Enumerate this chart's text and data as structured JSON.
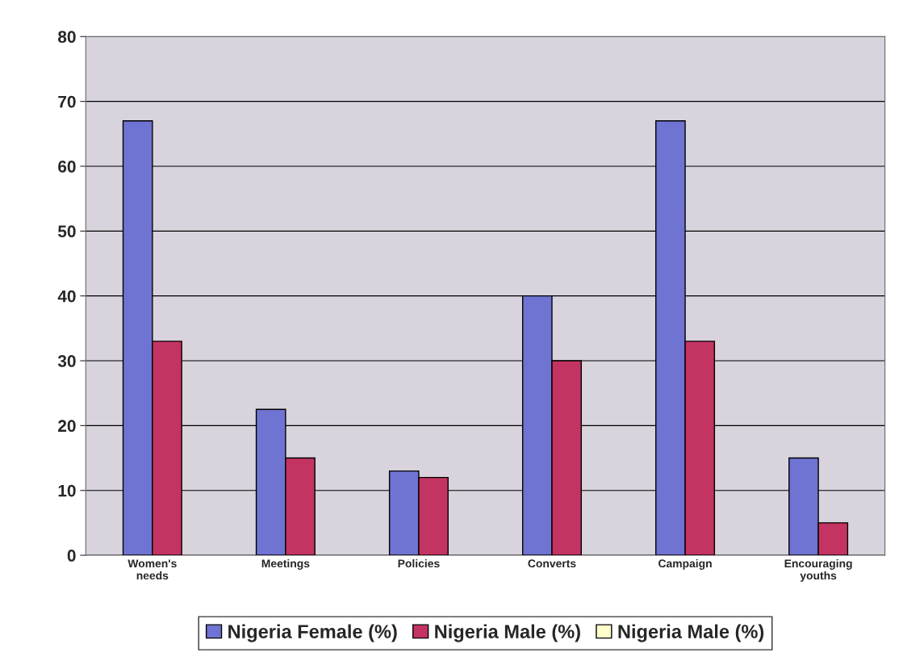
{
  "chart_data": {
    "type": "bar",
    "categories": [
      "Women's\nneeds",
      "Meetings",
      "Policies",
      "Converts",
      "Campaign",
      "Encouraging\nyouths"
    ],
    "series": [
      {
        "name": "Nigeria Female (%)",
        "color": "#6f73d2",
        "values": [
          67,
          22.5,
          13,
          40,
          67,
          15
        ]
      },
      {
        "name": "Nigeria Male (%)",
        "color": "#c43462",
        "values": [
          33,
          15,
          12,
          30,
          33,
          5
        ]
      },
      {
        "name": "Nigeria Male (%)",
        "color": "#ffffcc",
        "values": [
          null,
          null,
          null,
          null,
          null,
          null
        ]
      }
    ],
    "ylim": [
      0,
      80
    ],
    "yticks": [
      0,
      10,
      20,
      30,
      40,
      50,
      60,
      70,
      80
    ],
    "grid": "y",
    "legend": "bottom"
  }
}
